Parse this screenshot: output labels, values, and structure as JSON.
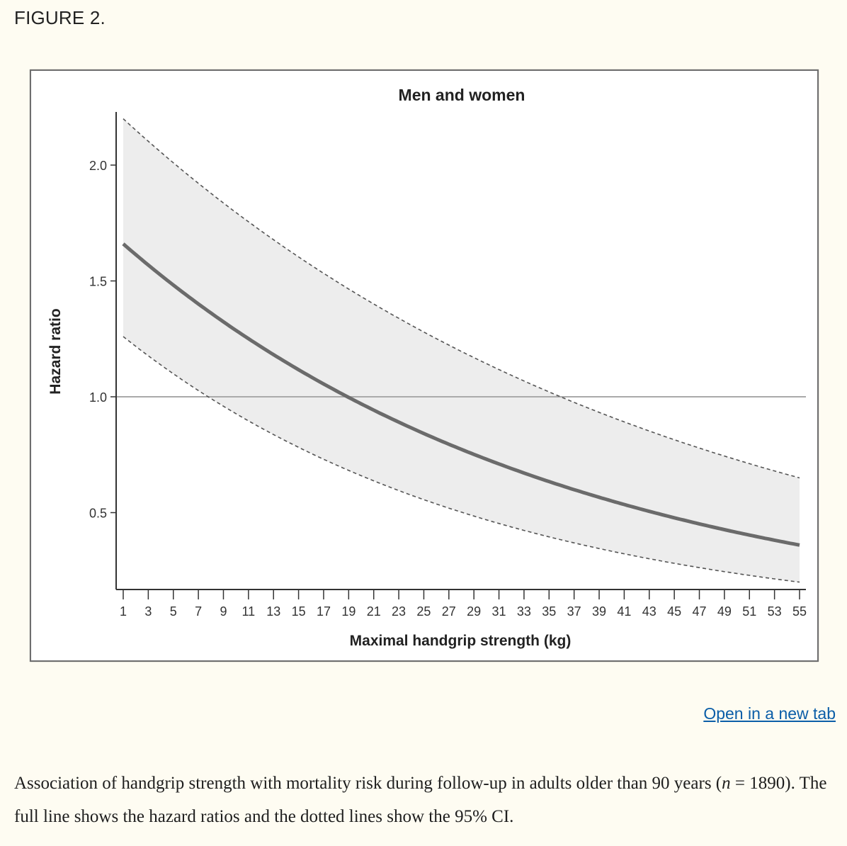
{
  "figure_label": "FIGURE 2.",
  "open_link": "Open in a new tab",
  "caption": {
    "text_before_n": "Association of handgrip strength with mortality risk during follow-up in adults older than 90 years (",
    "n_symbol": "n",
    "text_after_n": " = 1890). The full line shows the hazard ratios and the dotted lines show the 95% CI."
  },
  "colors": {
    "main_line": "#6b6b6b",
    "ci_fill": "#ededed",
    "ci_line": "#555555",
    "reference_line": "#aaaaaa",
    "axis": "#333333"
  },
  "chart_data": {
    "type": "line",
    "title": "Men and women",
    "xlabel": "Maximal handgrip strength (kg)",
    "ylabel": "Hazard ratio",
    "xlim": [
      1,
      55
    ],
    "ylim": [
      0.2,
      2.2
    ],
    "x_ticks": [
      1,
      3,
      5,
      7,
      9,
      11,
      13,
      15,
      17,
      19,
      21,
      23,
      25,
      27,
      29,
      31,
      33,
      35,
      37,
      39,
      41,
      43,
      45,
      47,
      49,
      51,
      53,
      55
    ],
    "y_ticks": [
      "0.5",
      "1.0",
      "1.5",
      "2.0"
    ],
    "reference_line": 1.0,
    "crossing_point": 18,
    "series": [
      {
        "name": "Hazard ratio",
        "style": "solid",
        "x_start": 1,
        "x_end": 55,
        "y_start": 1.66,
        "y_end": 0.36
      },
      {
        "name": "95% CI upper",
        "style": "dotted",
        "x_start": 1,
        "x_end": 55,
        "y_start": 2.2,
        "y_end": 0.65
      },
      {
        "name": "95% CI lower",
        "style": "dotted",
        "x_start": 1,
        "x_end": 55,
        "y_start": 1.26,
        "y_end": 0.2
      }
    ]
  }
}
